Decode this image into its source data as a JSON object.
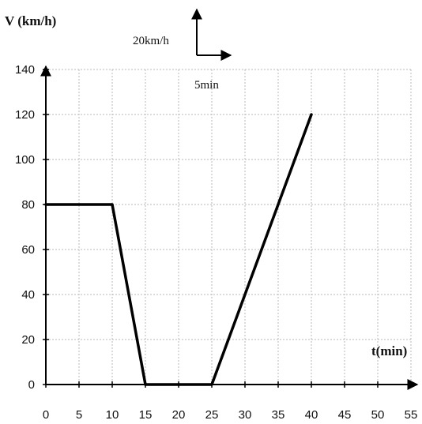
{
  "chart_data": {
    "type": "line",
    "ylabel": "V (km/h)",
    "xlabel": "t(min)",
    "xlim": [
      0,
      55
    ],
    "ylim": [
      0,
      140
    ],
    "x_ticks": [
      "0",
      "5",
      "10",
      "15",
      "20",
      "25",
      "30",
      "35",
      "40",
      "45",
      "50",
      "55"
    ],
    "y_ticks": [
      "0",
      "20",
      "40",
      "60",
      "80",
      "100",
      "120",
      "140"
    ],
    "grid": true,
    "series": [
      {
        "x": [
          0,
          10,
          15,
          25,
          40
        ],
        "y": [
          80,
          80,
          0,
          0,
          120
        ],
        "color": "#000000"
      }
    ],
    "scale_legend": {
      "vertical_label": "20km/h",
      "horizontal_label": "5min"
    }
  }
}
